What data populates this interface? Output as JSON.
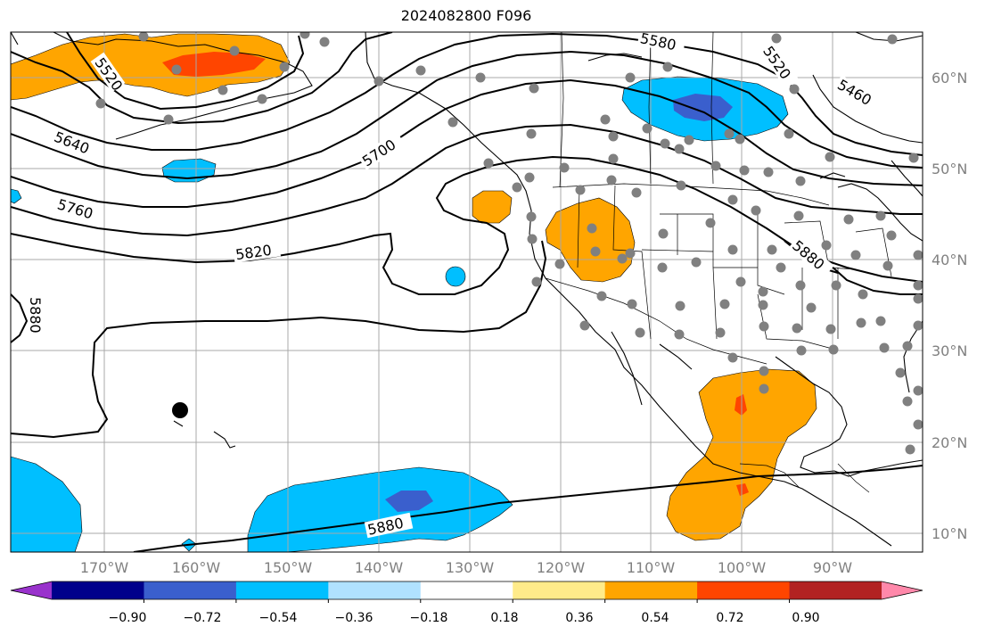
{
  "title": "2024082800 F096",
  "map": {
    "lon_labels": [
      "170°W",
      "160°W",
      "150°W",
      "140°W",
      "130°W",
      "120°W",
      "110°W",
      "100°W",
      "90°W"
    ],
    "lat_labels": [
      "60°N",
      "50°N",
      "40°N",
      "30°N",
      "20°N",
      "10°N"
    ],
    "contour_labels": [
      "5520",
      "5580",
      "5520",
      "5460",
      "5640",
      "5700",
      "5760",
      "5820",
      "5880",
      "5880",
      "5880"
    ],
    "colors": {
      "land_border": "#000000",
      "gridline": "#a0a0a0",
      "station": "#808080",
      "marker": "#000000"
    }
  },
  "colorbar": {
    "levels": [
      "−0.90",
      "−0.72",
      "−0.54",
      "−0.36",
      "−0.18",
      "0.18",
      "0.36",
      "0.54",
      "0.72",
      "0.90"
    ],
    "colors": [
      "#9932cc",
      "#00008b",
      "#3a5fcd",
      "#00bfff",
      "#b0e2ff",
      "#ffffff",
      "#ffeb8a",
      "#ffa500",
      "#ff4500",
      "#b22222",
      "#ff88aa"
    ]
  }
}
